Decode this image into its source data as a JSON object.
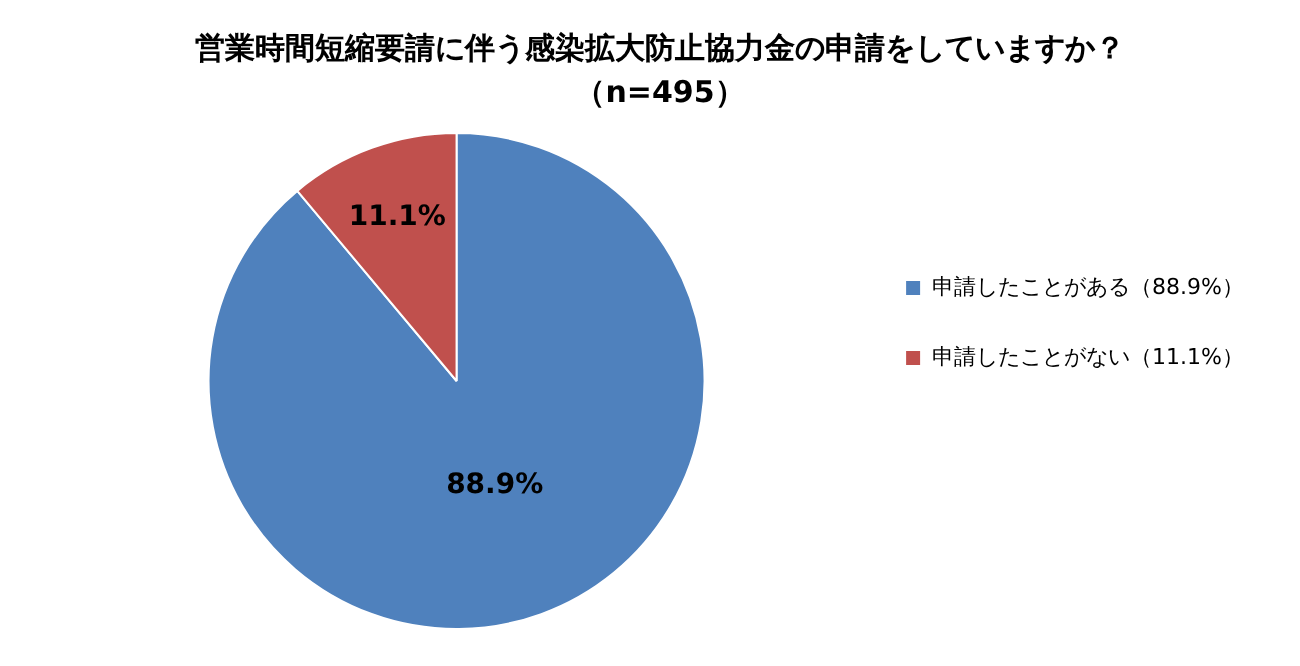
{
  "chart_data": {
    "type": "pie",
    "title": "営業時間短縮要請に伴う感染拡大防止協力金の申請をしていますか？",
    "subtitle": "（n=495）",
    "categories": [
      "申請したことがある（88.9%）",
      "申請したことがない（11.1%）"
    ],
    "values": [
      88.9,
      11.1
    ],
    "colors": [
      "#4f81bd",
      "#c0504d"
    ],
    "value_labels": [
      "88.9%",
      "11.1%"
    ],
    "legend": "right"
  }
}
